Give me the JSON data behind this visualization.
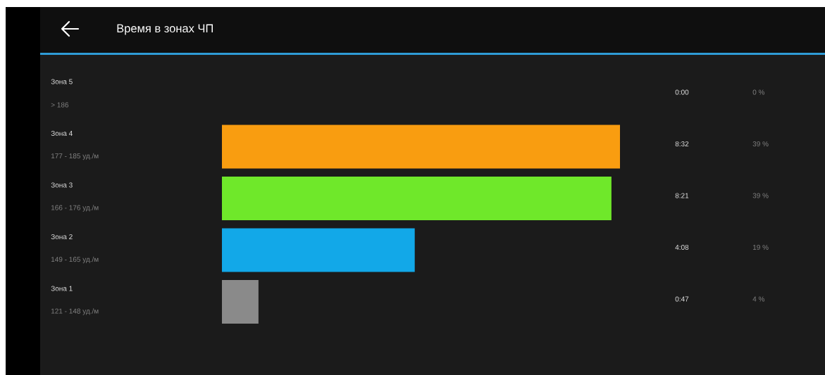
{
  "chart_data": {
    "type": "bar",
    "orientation": "horizontal",
    "title": "Время в зонах ЧП",
    "categories": [
      "Зона 5",
      "Зона 4",
      "Зона 3",
      "Зона 2",
      "Зона 1"
    ],
    "values": [
      0,
      512,
      501,
      248,
      47
    ],
    "colors": [
      "#e53935",
      "#f99d10",
      "#6fe82a",
      "#12a8e8",
      "#8a8a8a"
    ],
    "value_labels": [
      "0:00",
      "8:32",
      "8:21",
      "4:08",
      "0:47"
    ],
    "annotations": [
      "> 186",
      "177 - 185 уд./м",
      "166 - 176 уд./м",
      "149 - 165 уд./м",
      "121 - 148 уд./м",
      "0 %",
      "39 %",
      "39 %",
      "19 %",
      "4 %"
    ]
  }
}
